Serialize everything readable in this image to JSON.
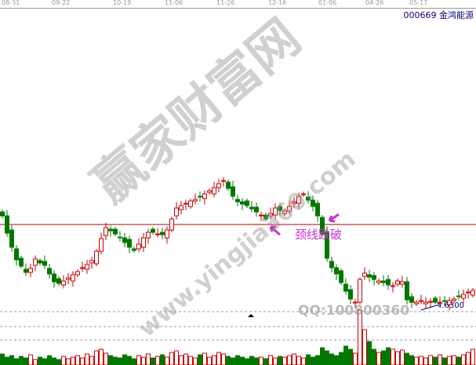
{
  "header": {
    "stock": "000669 金鸿能源"
  },
  "chart_data": {
    "type": "candlestick",
    "x_tick_labels": [
      "08-31",
      "09-22",
      "10-19",
      "11-06",
      "11-26",
      "12-16",
      "01-06",
      "04-26",
      "05-17"
    ],
    "closes": [
      5.8,
      5.58,
      5.4,
      5.24,
      5.16,
      5.08,
      5.13,
      5.25,
      5.2,
      5.17,
      5.06,
      4.96,
      4.94,
      4.97,
      5.01,
      5.05,
      5.09,
      5.14,
      5.18,
      5.23,
      5.35,
      5.51,
      5.65,
      5.61,
      5.57,
      5.52,
      5.46,
      5.4,
      5.36,
      5.44,
      5.52,
      5.59,
      5.59,
      5.57,
      5.56,
      5.62,
      5.76,
      5.9,
      5.93,
      5.96,
      5.99,
      6.01,
      6.04,
      6.08,
      6.12,
      6.16,
      6.21,
      6.25,
      6.15,
      6.05,
      5.98,
      5.95,
      5.93,
      5.89,
      5.85,
      5.81,
      5.76,
      5.83,
      5.9,
      5.87,
      5.86,
      5.92,
      5.98,
      6.05,
      6.08,
      6.0,
      5.92,
      5.8,
      5.57,
      5.26,
      5.14,
      5.06,
      4.95,
      4.84,
      4.74,
      4.7,
      4.99,
      5.07,
      5.02,
      4.99,
      4.97,
      4.95,
      4.92,
      4.91,
      4.97,
      4.96,
      4.73,
      4.7,
      4.7,
      4.72,
      4.7,
      4.71,
      4.7,
      4.7,
      4.71,
      4.72,
      4.74,
      4.77,
      4.8,
      4.83,
      4.85
    ],
    "volumes": [
      14,
      10,
      12,
      8,
      11,
      9,
      13,
      7,
      10,
      8,
      12,
      9,
      7,
      11,
      8,
      10,
      12,
      9,
      14,
      11,
      18,
      20,
      15,
      12,
      10,
      9,
      13,
      11,
      8,
      12,
      10,
      14,
      9,
      11,
      13,
      10,
      16,
      18,
      12,
      14,
      11,
      9,
      13,
      15,
      10,
      12,
      16,
      14,
      11,
      9,
      12,
      10,
      8,
      11,
      9,
      10,
      8,
      12,
      9,
      11,
      10,
      12,
      14,
      11,
      9,
      13,
      10,
      12,
      22,
      18,
      14,
      12,
      16,
      24,
      20,
      15,
      70,
      45,
      30,
      20,
      16,
      18,
      22,
      20,
      17,
      19,
      15,
      12,
      10,
      11,
      9,
      12,
      10,
      13,
      9,
      11,
      12,
      10,
      13,
      16,
      20
    ],
    "neckline": 5.69,
    "low_label": "4.6300",
    "annotation": "颈线跌破",
    "colors": {
      "up": "#cc0000",
      "down": "#007700",
      "neckline": "#b00000",
      "annotation": "#cc33cc"
    }
  },
  "watermark": {
    "site": "赢家财富网",
    "url": "www.yingjia360.com",
    "qq": "QQ:100800360"
  }
}
